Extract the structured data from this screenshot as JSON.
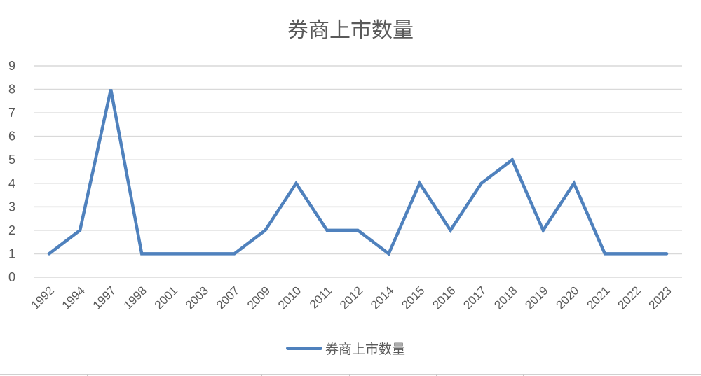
{
  "chart_data": {
    "type": "line",
    "title": "券商上市数量",
    "xlabel": "",
    "ylabel": "",
    "categories": [
      "1992",
      "1994",
      "1997",
      "1998",
      "2001",
      "2003",
      "2007",
      "2009",
      "2010",
      "2011",
      "2012",
      "2014",
      "2015",
      "2016",
      "2017",
      "2018",
      "2019",
      "2020",
      "2021",
      "2022",
      "2023"
    ],
    "series": [
      {
        "name": "券商上市数量",
        "color": "#4F81BD",
        "values": [
          1,
          2,
          8,
          1,
          1,
          1,
          1,
          2,
          4,
          2,
          2,
          1,
          4,
          2,
          4,
          5,
          2,
          4,
          1,
          1,
          1
        ]
      }
    ],
    "ylim": [
      0,
      9
    ],
    "yticks": [
      0,
      1,
      2,
      3,
      4,
      5,
      6,
      7,
      8,
      9
    ],
    "grid": true,
    "legend_position": "bottom"
  },
  "legend": {
    "label": "券商上市数量"
  }
}
